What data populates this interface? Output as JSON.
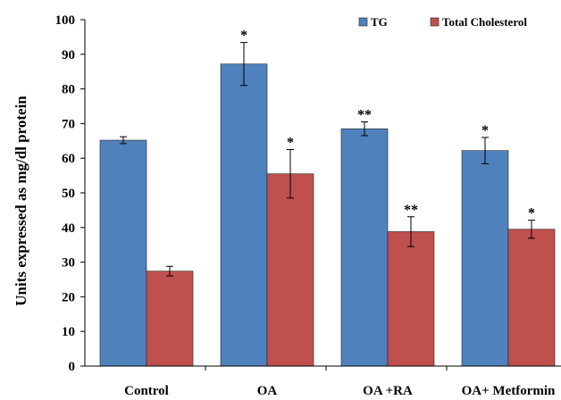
{
  "chart_data": {
    "type": "bar",
    "title": "",
    "xlabel": "",
    "ylabel": "Units expressed as mg/dl protein",
    "ylim": [
      0,
      100
    ],
    "yticks": [
      "0",
      "10",
      "20",
      "30",
      "40",
      "50",
      "60",
      "70",
      "80",
      "90",
      "100"
    ],
    "categories": [
      "Control",
      "OA",
      "OA +RA",
      "OA+ Metformin"
    ],
    "series": [
      {
        "name": "TG",
        "color": "#4f81bd",
        "values": [
          65.2,
          87.2,
          68.5,
          62.2
        ],
        "errors": [
          1.0,
          6.2,
          2.0,
          3.8
        ],
        "significance": [
          "",
          "*",
          "**",
          "*"
        ]
      },
      {
        "name": "Total Cholesterol",
        "color": "#c0504d",
        "values": [
          27.4,
          55.5,
          38.8,
          39.5
        ],
        "errors": [
          1.4,
          7.0,
          4.3,
          2.6
        ],
        "significance": [
          "",
          "*",
          "**",
          "*"
        ]
      }
    ],
    "legend_position": "top-right",
    "grid": false
  }
}
